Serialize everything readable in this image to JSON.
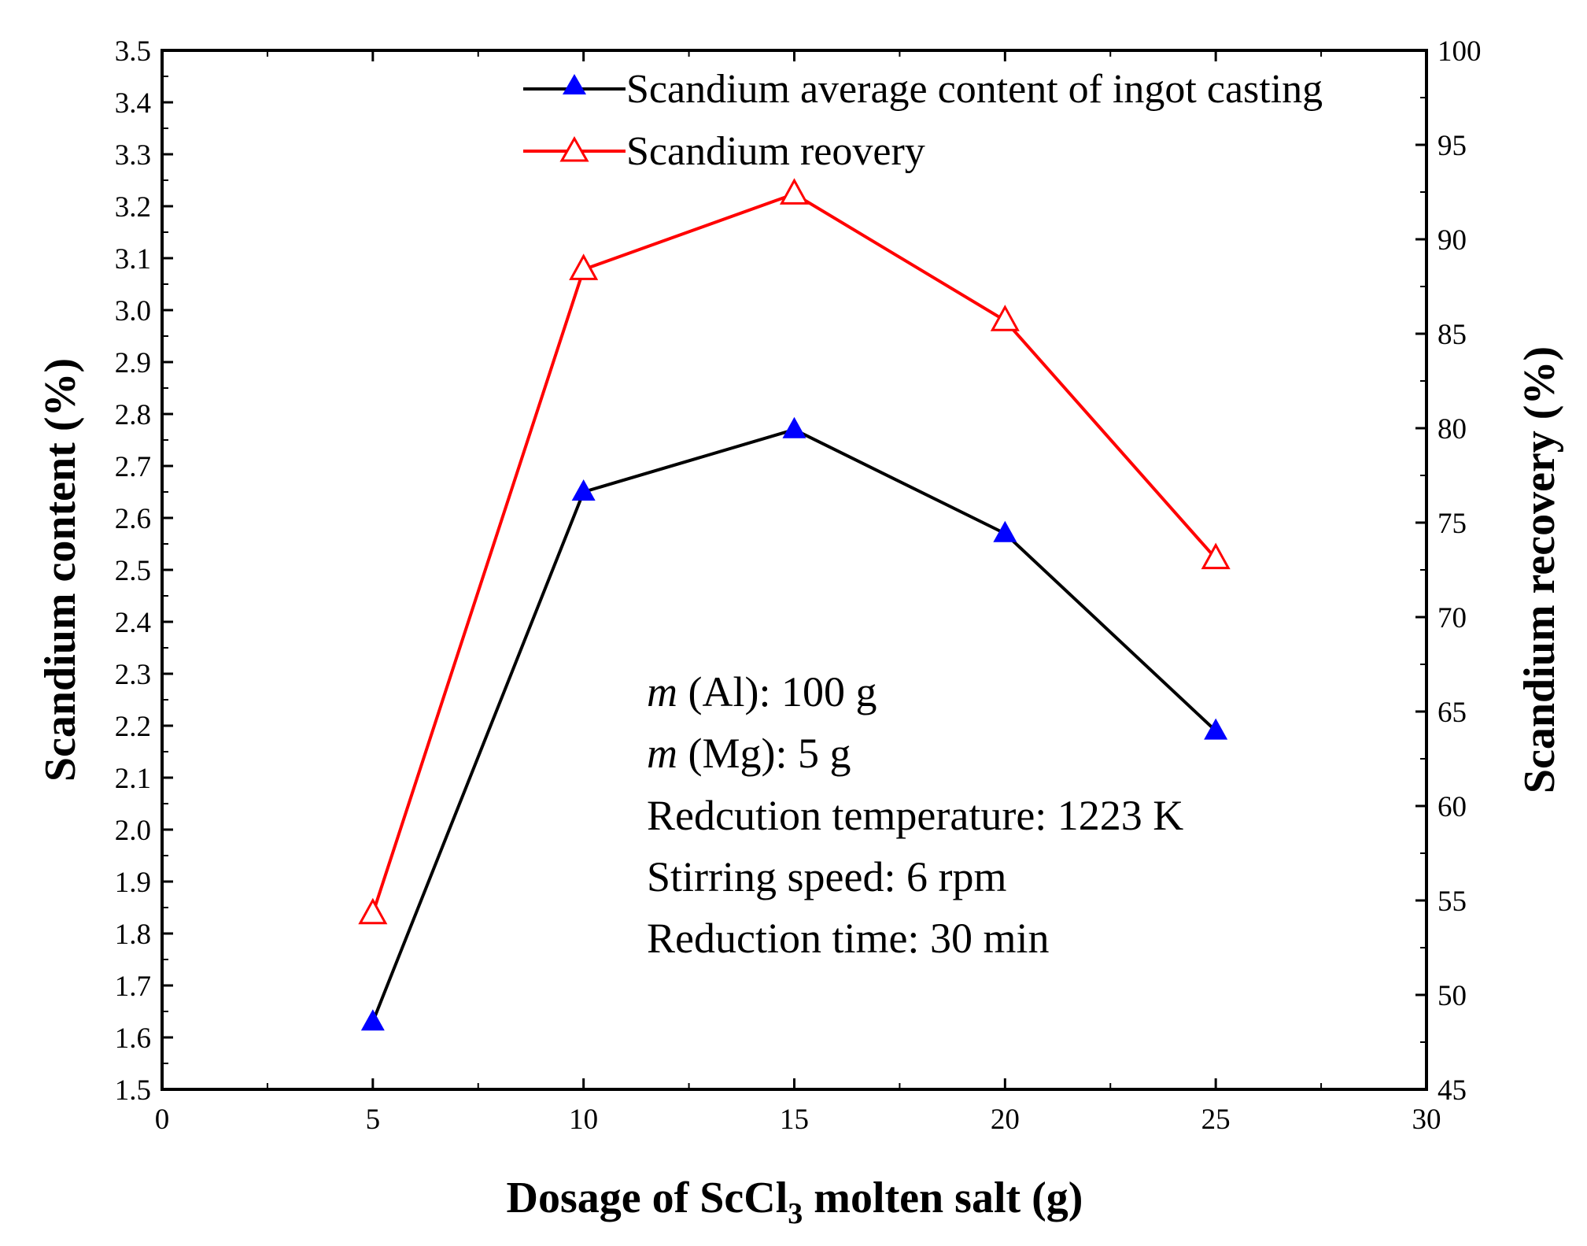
{
  "chart_data": {
    "type": "line",
    "x": [
      5,
      10,
      15,
      20,
      25
    ],
    "xlabel_main": "Dosage of ScCl",
    "xlabel_sub": "3",
    "xlabel_tail": " molten salt  (g)",
    "xlim": [
      0,
      30
    ],
    "xticks": [
      0,
      5,
      10,
      15,
      20,
      25,
      30
    ],
    "ylabel_left": "Scandium content (%)",
    "ylim_left": [
      1.5,
      3.5
    ],
    "yticks_left": [
      "1.5",
      "1.6",
      "1.7",
      "1.8",
      "1.9",
      "2.0",
      "2.1",
      "2.2",
      "2.3",
      "2.4",
      "2.5",
      "2.6",
      "2.7",
      "2.8",
      "2.9",
      "3.0",
      "3.1",
      "3.2",
      "3.3",
      "3.4",
      "3.5"
    ],
    "ylabel_right": "Scandium recovery (%)",
    "ylim_right": [
      45,
      100
    ],
    "yticks_right": [
      45,
      50,
      55,
      60,
      65,
      70,
      75,
      80,
      85,
      90,
      95,
      100
    ],
    "series": [
      {
        "name": "Scandium average content of ingot casting",
        "axis": "left",
        "values": [
          1.63,
          2.65,
          2.77,
          2.57,
          2.19
        ],
        "line_color": "#000000",
        "marker_color": "#0000ff",
        "marker": "filled-triangle"
      },
      {
        "name": "Scandium reovery",
        "axis": "right",
        "values": [
          54.3,
          88.4,
          92.4,
          85.7,
          73.1
        ],
        "line_color": "#ff0000",
        "marker_color": "#ff0000",
        "marker": "open-triangle"
      }
    ],
    "legend_position": "top-center",
    "annotations": [
      {
        "italic": "m",
        "text": " (Al): 100 g"
      },
      {
        "italic": "m",
        "text": " (Mg): 5 g"
      },
      {
        "italic": "",
        "text": "Redcution temperature: 1223 K"
      },
      {
        "italic": "",
        "text": "Stirring speed: 6 rpm"
      },
      {
        "italic": "",
        "text": "Reduction time: 30 min"
      }
    ]
  }
}
